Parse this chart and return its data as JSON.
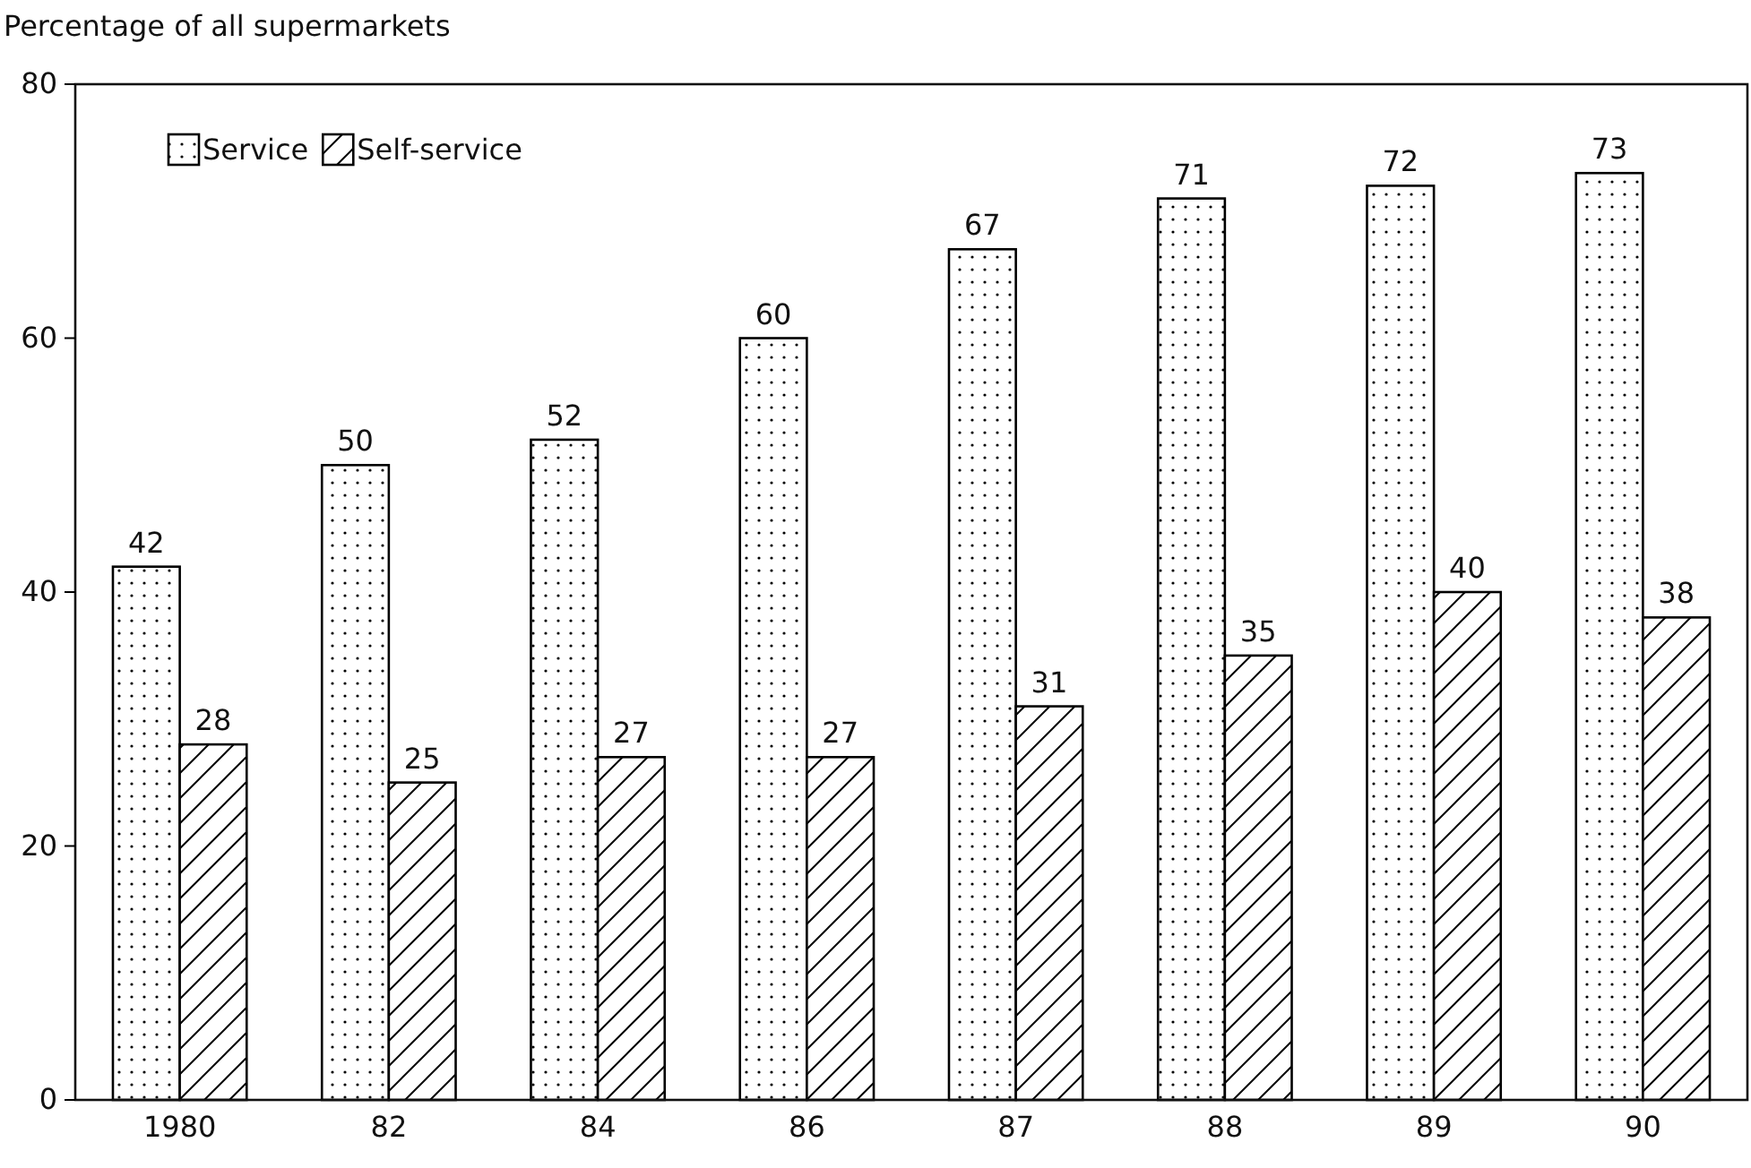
{
  "chart_data": {
    "type": "bar",
    "ylabel": "Percentage of all supermarkets",
    "categories": [
      "1980",
      "82",
      "84",
      "86",
      "87",
      "88",
      "89",
      "90"
    ],
    "series": [
      {
        "name": "Service",
        "color": "#000000",
        "values": [
          42,
          50,
          52,
          60,
          67,
          71,
          72,
          73
        ]
      },
      {
        "name": "Self-service",
        "color": "#000000",
        "values": [
          28,
          25,
          27,
          27,
          31,
          35,
          40,
          38
        ]
      }
    ],
    "ylim": [
      0,
      80
    ],
    "yticks": [
      0,
      20,
      40,
      60,
      80
    ],
    "data_labels": true,
    "legend": "top left",
    "grid": false
  }
}
